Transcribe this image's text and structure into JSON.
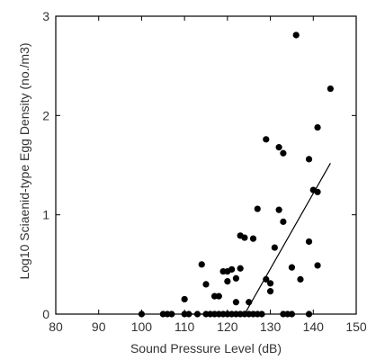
{
  "chart_data": {
    "type": "scatter",
    "xlabel": "Sound Pressure Level (dB)",
    "ylabel": "Log10 Sciaenid-type Egg Density (no./m3)",
    "xlim": [
      80,
      150
    ],
    "ylim": [
      0,
      3
    ],
    "x_ticks": [
      "80",
      "90",
      "100",
      "110",
      "120",
      "130",
      "140",
      "150"
    ],
    "y_ticks": [
      "0",
      "1",
      "2",
      "3"
    ],
    "grid": false,
    "colors": {
      "points": "#000000",
      "line": "#000000",
      "axis": "#000000"
    },
    "series": [
      {
        "type": "scatter",
        "points": [
          [
            100,
            0
          ],
          [
            105,
            0
          ],
          [
            106,
            0
          ],
          [
            107,
            0
          ],
          [
            110,
            0
          ],
          [
            111,
            0
          ],
          [
            113,
            0
          ],
          [
            115,
            0
          ],
          [
            116,
            0
          ],
          [
            117,
            0
          ],
          [
            118,
            0
          ],
          [
            119,
            0
          ],
          [
            120,
            0
          ],
          [
            121,
            0
          ],
          [
            122,
            0
          ],
          [
            123,
            0
          ],
          [
            124,
            0
          ],
          [
            125,
            0
          ],
          [
            126,
            0
          ],
          [
            127,
            0
          ],
          [
            128,
            0
          ],
          [
            133,
            0
          ],
          [
            134,
            0
          ],
          [
            135,
            0
          ],
          [
            139,
            0
          ],
          [
            110,
            0.15
          ],
          [
            114,
            0.5
          ],
          [
            115,
            0.3
          ],
          [
            117,
            0.18
          ],
          [
            118,
            0.18
          ],
          [
            119,
            0.43
          ],
          [
            120,
            0.33
          ],
          [
            120,
            0.43
          ],
          [
            121,
            0.45
          ],
          [
            122,
            0.12
          ],
          [
            122,
            0.36
          ],
          [
            123,
            0.79
          ],
          [
            123,
            0.46
          ],
          [
            124,
            0.77
          ],
          [
            125,
            0.12
          ],
          [
            126,
            0.76
          ],
          [
            127,
            1.06
          ],
          [
            129,
            0.35
          ],
          [
            129,
            1.76
          ],
          [
            130,
            0.23
          ],
          [
            131,
            0.67
          ],
          [
            130,
            0.31
          ],
          [
            132,
            1.05
          ],
          [
            132,
            1.68
          ],
          [
            133,
            1.62
          ],
          [
            133,
            0.93
          ],
          [
            135,
            0.47
          ],
          [
            136,
            2.81
          ],
          [
            137,
            0.35
          ],
          [
            139,
            1.56
          ],
          [
            139,
            0.73
          ],
          [
            140,
            1.25
          ],
          [
            141,
            1.23
          ],
          [
            141,
            0.49
          ],
          [
            141,
            1.88
          ],
          [
            144,
            2.27
          ]
        ]
      },
      {
        "type": "line",
        "points": [
          [
            110,
            0
          ],
          [
            124,
            0
          ],
          [
            144,
            1.52
          ]
        ]
      }
    ]
  }
}
